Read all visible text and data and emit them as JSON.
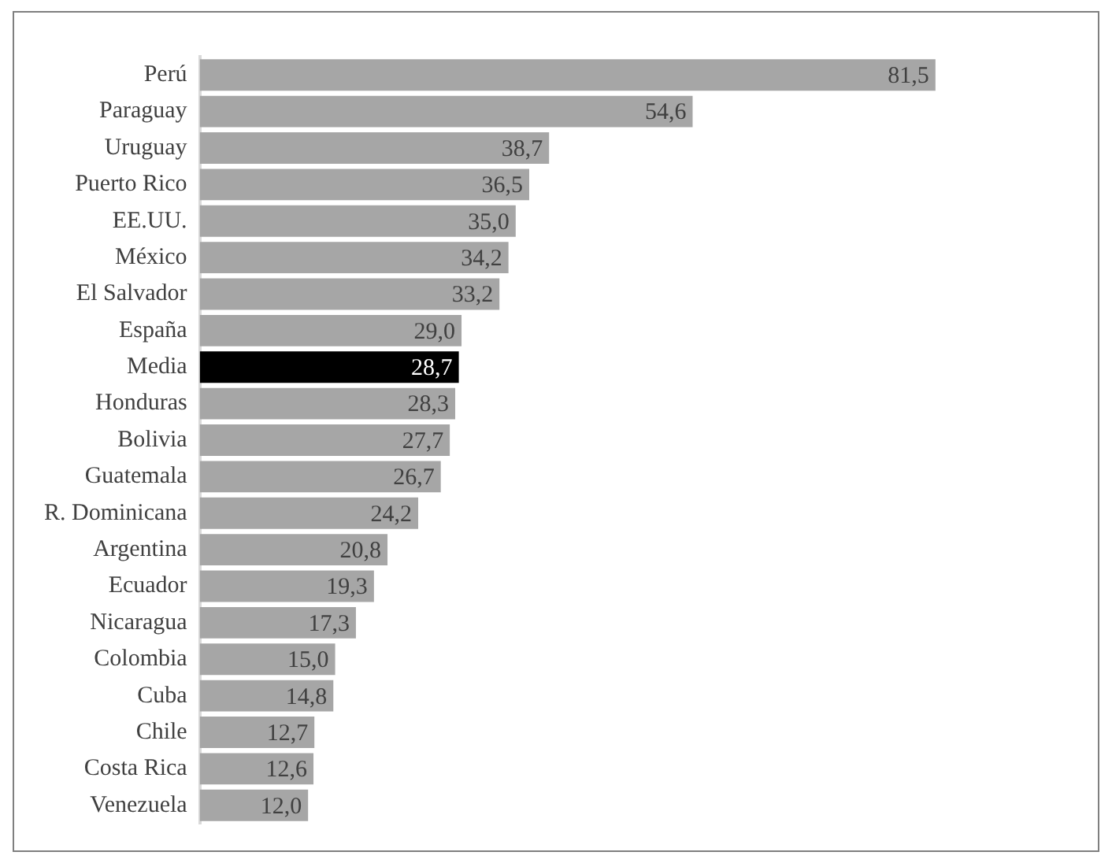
{
  "chart_data": {
    "type": "bar",
    "orientation": "horizontal",
    "categories": [
      "Perú",
      "Paraguay",
      "Uruguay",
      "Puerto Rico",
      "EE.UU.",
      "México",
      "El Salvador",
      "España",
      "Media",
      "Honduras",
      "Bolivia",
      "Guatemala",
      "R. Dominicana",
      "Argentina",
      "Ecuador",
      "Nicaragua",
      "Colombia",
      "Cuba",
      "Chile",
      "Costa Rica",
      "Venezuela"
    ],
    "values": [
      81.5,
      54.6,
      38.7,
      36.5,
      35.0,
      34.2,
      33.2,
      29.0,
      28.7,
      28.3,
      27.7,
      26.7,
      24.2,
      20.8,
      19.3,
      17.3,
      15.0,
      14.8,
      12.7,
      12.6,
      12.0
    ],
    "colors": [
      "#a6a6a6",
      "#a6a6a6",
      "#a6a6a6",
      "#a6a6a6",
      "#a6a6a6",
      "#a6a6a6",
      "#a6a6a6",
      "#a6a6a6",
      "#000000",
      "#a6a6a6",
      "#a6a6a6",
      "#a6a6a6",
      "#a6a6a6",
      "#a6a6a6",
      "#a6a6a6",
      "#a6a6a6",
      "#a6a6a6",
      "#a6a6a6",
      "#a6a6a6",
      "#a6a6a6",
      "#a6a6a6"
    ],
    "value_labels": [
      "81,5",
      "54,6",
      "38,7",
      "36,5",
      "35,0",
      "34,2",
      "33,2",
      "29,0",
      "28,7",
      "28,3",
      "27,7",
      "26,7",
      "24,2",
      "20,8",
      "19,3",
      "17,3",
      "15,0",
      "14,8",
      "12,7",
      "12,6",
      "12,0"
    ],
    "grid": false,
    "legend": false
  }
}
